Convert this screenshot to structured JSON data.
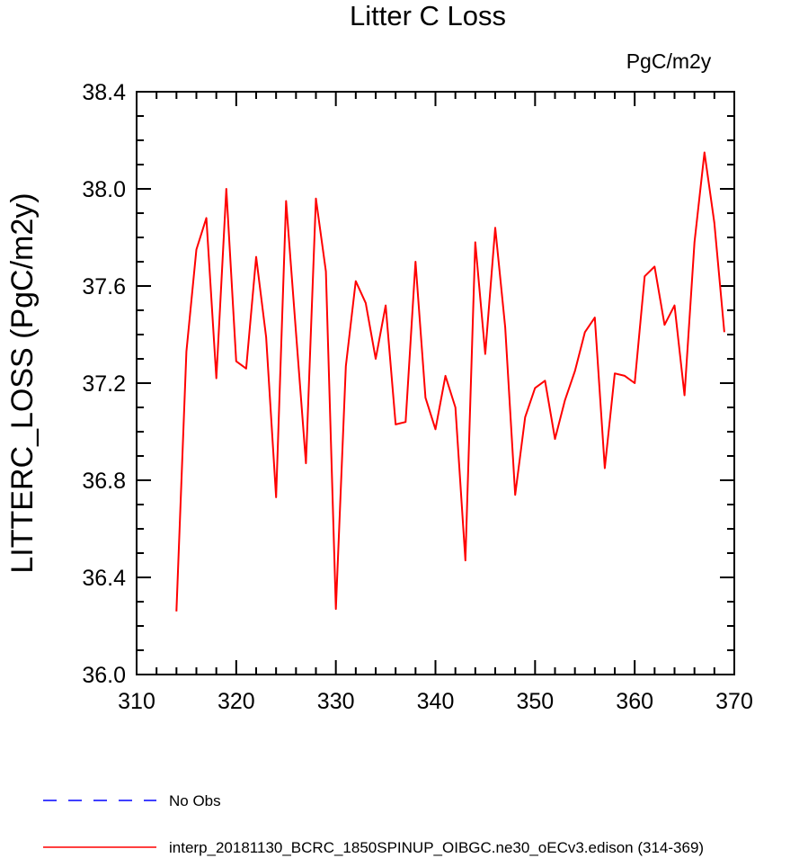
{
  "chart_data": {
    "type": "line",
    "title": "Litter C Loss",
    "units": "PgC/m2y",
    "ylabel": "LITTERC_LOSS  (PgC/m2y)",
    "xlabel": "",
    "xlim": [
      310,
      370
    ],
    "ylim": [
      36.0,
      38.4
    ],
    "xticks": [
      {
        "v": 310,
        "label": "310"
      },
      {
        "v": 320,
        "label": "320"
      },
      {
        "v": 330,
        "label": "330"
      },
      {
        "v": 340,
        "label": "340"
      },
      {
        "v": 350,
        "label": "350"
      },
      {
        "v": 360,
        "label": "360"
      },
      {
        "v": 370,
        "label": "370"
      }
    ],
    "yticks": [
      {
        "v": 36.0,
        "label": "36.0"
      },
      {
        "v": 36.4,
        "label": "36.4"
      },
      {
        "v": 36.8,
        "label": "36.8"
      },
      {
        "v": 37.2,
        "label": "37.2"
      },
      {
        "v": 37.6,
        "label": "37.6"
      },
      {
        "v": 38.0,
        "label": "38.0"
      },
      {
        "v": 38.4,
        "label": "38.4"
      }
    ],
    "x_minor_step": 2,
    "y_minor_step": 0.1,
    "grid": false,
    "legend_position": "bottom",
    "series": [
      {
        "name": "interp_20181130_BCRC_1850SPINUP_OIBGC.ne30_oECv3.edison (314-369)",
        "color": "#ff0000",
        "style": "solid",
        "x": [
          314,
          315,
          316,
          317,
          318,
          319,
          320,
          321,
          322,
          323,
          324,
          325,
          326,
          327,
          328,
          329,
          330,
          331,
          332,
          333,
          334,
          335,
          336,
          337,
          338,
          339,
          340,
          341,
          342,
          343,
          344,
          345,
          346,
          347,
          348,
          349,
          350,
          351,
          352,
          353,
          354,
          355,
          356,
          357,
          358,
          359,
          360,
          361,
          362,
          363,
          364,
          365,
          366,
          367,
          368,
          369
        ],
        "y": [
          36.26,
          37.33,
          37.75,
          37.88,
          37.22,
          38.0,
          37.29,
          37.26,
          37.72,
          37.39,
          36.73,
          37.95,
          37.41,
          36.87,
          37.96,
          37.66,
          36.27,
          37.27,
          37.62,
          37.53,
          37.3,
          37.52,
          37.03,
          37.04,
          37.7,
          37.14,
          37.01,
          37.23,
          37.1,
          36.47,
          37.78,
          37.32,
          37.84,
          37.43,
          36.74,
          37.06,
          37.18,
          37.21,
          36.97,
          37.13,
          37.25,
          37.41,
          37.47,
          36.85,
          37.24,
          37.23,
          37.2,
          37.64,
          37.68,
          37.44,
          37.52,
          37.15,
          37.78,
          38.15,
          37.86,
          37.41
        ]
      },
      {
        "name": "No Obs",
        "color": "#0000ff",
        "style": "dashed",
        "x": [],
        "y": []
      }
    ]
  }
}
